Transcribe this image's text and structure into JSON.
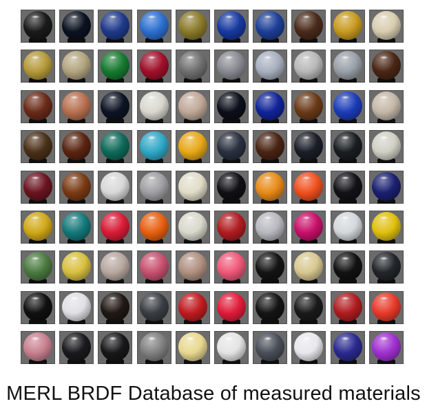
{
  "caption": "MERL BRDF Database of measured materials",
  "grid": {
    "rows": 9,
    "cols": 10,
    "materials": [
      [
        "#1a1a1a",
        "#0c1220",
        "#1f3a8a",
        "#2c6fd0",
        "#8a7a2a",
        "#1739a0",
        "#1d3f98",
        "#4a2a1a",
        "#c89a20",
        "#d8cdb0"
      ],
      [
        "#b59a3a",
        "#b3a580",
        "#167a30",
        "#a0102a",
        "#707070",
        "#888a92",
        "#a8b0c0",
        "#b8b8b8",
        "#9aa0a8",
        "#4a2614"
      ],
      [
        "#6a2a18",
        "#b87050",
        "#0d1424",
        "#d8d8d0",
        "#c0a898",
        "#0c0f1a",
        "#10249a",
        "#6a3a18",
        "#1c3cb8",
        "#c4b8a8"
      ],
      [
        "#4a3018",
        "#5a2410",
        "#0f6a5a",
        "#2fa8c8",
        "#e8a818",
        "#2a3040",
        "#4a2414",
        "#1a1e26",
        "#1a1e22",
        "#d0d0c4"
      ],
      [
        "#6a1420",
        "#7a3a14",
        "#d8d8d8",
        "#a0a0a4",
        "#e0dcc8",
        "#101014",
        "#e88a18",
        "#f0501e",
        "#121218",
        "#1a2070"
      ],
      [
        "#d0a818",
        "#14787a",
        "#d81c36",
        "#e86010",
        "#d8d8cc",
        "#b01c20",
        "#b8b8c0",
        "#c8106a",
        "#d4d8dc",
        "#e0c010"
      ],
      [
        "#4a7a40",
        "#d8c040",
        "#b8a8a0",
        "#c85070",
        "#b09080",
        "#f05878",
        "#141414",
        "#d8c890",
        "#121212",
        "#22262a"
      ],
      [
        "#101010",
        "#e0e0e4",
        "#201814",
        "#3a3e44",
        "#c01c20",
        "#e01c3a",
        "#141414",
        "#1a1a1a",
        "#b01c20",
        "#e83a2a"
      ],
      [
        "#c88090",
        "#1a1a1e",
        "#18181a",
        "#808080",
        "#e8d890",
        "#e4e4e4",
        "#4a4e58",
        "#e8e8ec",
        "#2a2a90",
        "#a030d0"
      ]
    ]
  }
}
